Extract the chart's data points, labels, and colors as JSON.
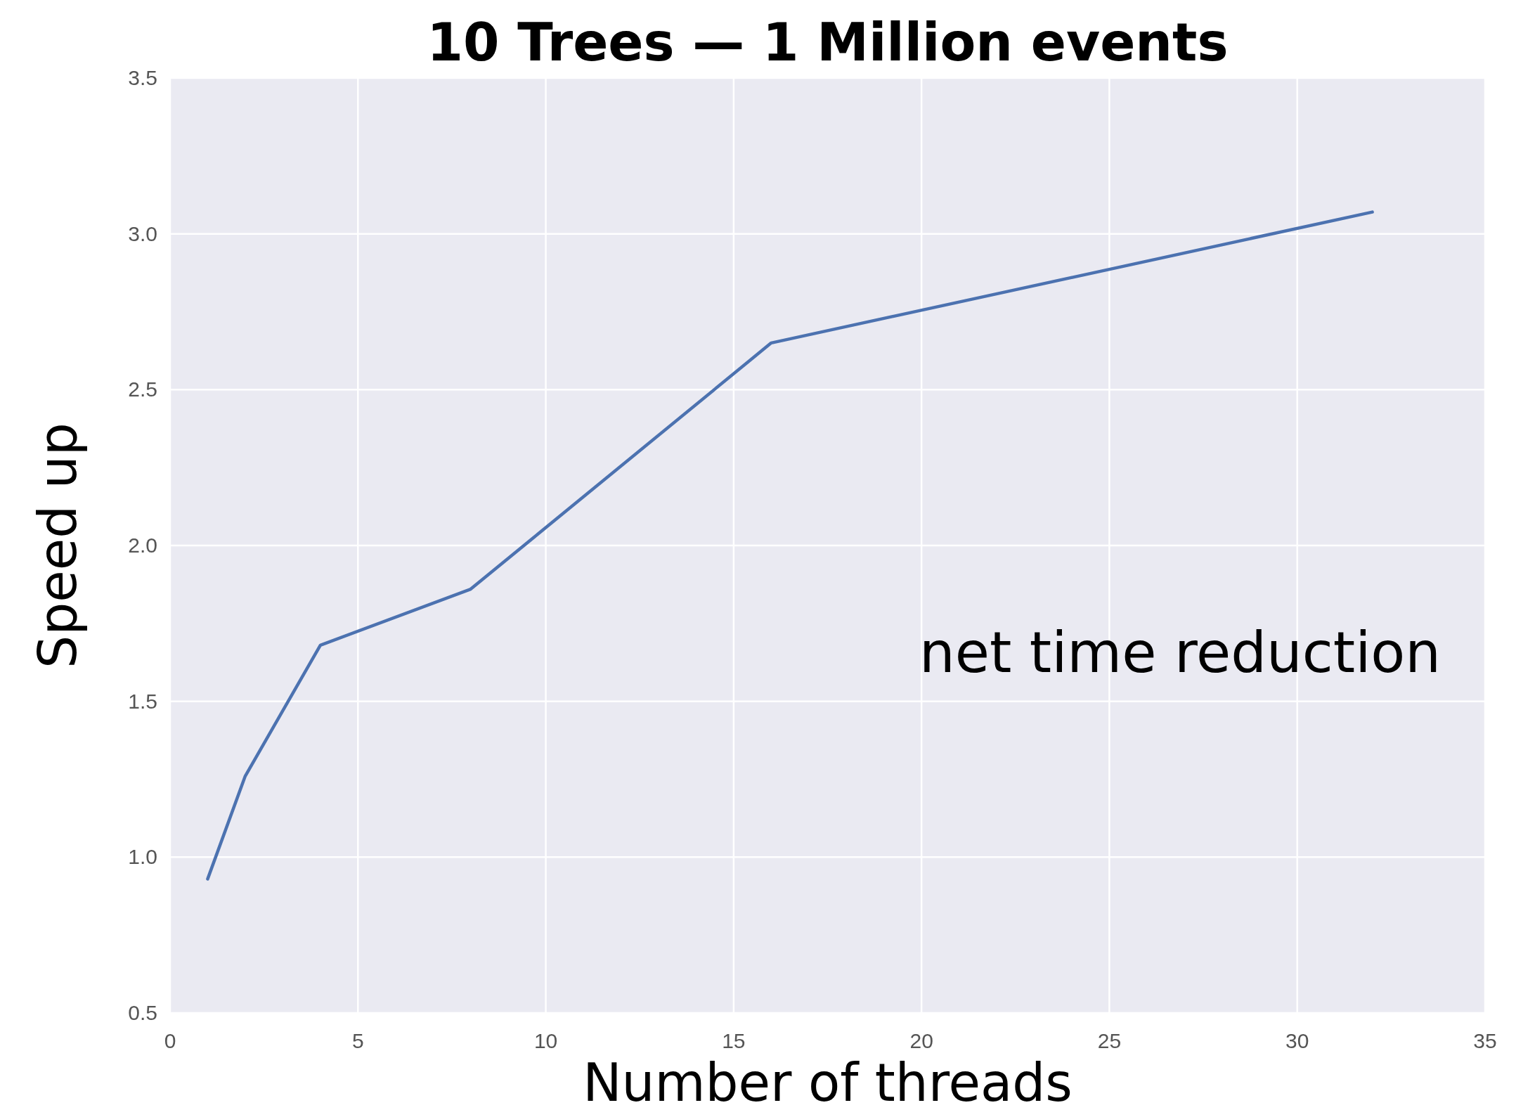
{
  "chart_data": {
    "type": "line",
    "title": "10 Trees — 1 Million events",
    "xlabel": "Number of threads",
    "ylabel": "Speed up",
    "x": [
      1,
      2,
      4,
      8,
      16,
      32
    ],
    "series": [
      {
        "color": "#4c72b0",
        "values": [
          0.93,
          1.26,
          1.68,
          1.86,
          2.65,
          3.07
        ]
      }
    ],
    "xlim": [
      0,
      35
    ],
    "xticks": [
      0,
      5,
      10,
      15,
      20,
      25,
      30,
      35
    ],
    "ylim": [
      0.5,
      3.5
    ],
    "yticks": [
      {
        "value": 0.5,
        "label": "0.5"
      },
      {
        "value": 1,
        "label": "1.0"
      },
      {
        "value": 1.5,
        "label": "1.5"
      },
      {
        "value": 2,
        "label": "2.0"
      },
      {
        "value": 2.5,
        "label": "2.5"
      },
      {
        "value": 3,
        "label": "3.0"
      },
      {
        "value": 3.5,
        "label": "3.5"
      }
    ],
    "grid": true,
    "marker": "none",
    "line_style": "solid",
    "annotations": [
      "net time reduction"
    ]
  }
}
